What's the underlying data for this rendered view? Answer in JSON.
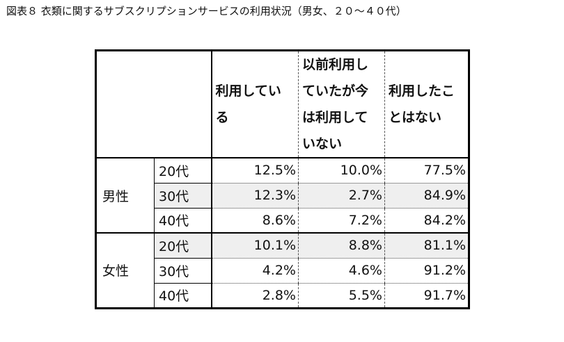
{
  "caption": "図表８ 衣類に関するサブスクリプションサービスの利用状況（男女、２０～４０代）",
  "table": {
    "columns": [
      [
        "利用してい",
        "る"
      ],
      [
        "以前利用し",
        "ていたが今",
        "は利用して",
        "いない"
      ],
      [
        "利用したこ",
        "とはない"
      ]
    ],
    "groups": [
      {
        "label": "男性",
        "rows": [
          {
            "age": "20代",
            "values": [
              "12.5%",
              "10.0%",
              "77.5%"
            ]
          },
          {
            "age": "30代",
            "values": [
              "12.3%",
              "2.7%",
              "84.9%"
            ]
          },
          {
            "age": "40代",
            "values": [
              "8.6%",
              "7.2%",
              "84.2%"
            ]
          }
        ]
      },
      {
        "label": "女性",
        "rows": [
          {
            "age": "20代",
            "values": [
              "10.1%",
              "8.8%",
              "81.1%"
            ]
          },
          {
            "age": "30代",
            "values": [
              "4.2%",
              "4.6%",
              "91.2%"
            ]
          },
          {
            "age": "40代",
            "values": [
              "2.8%",
              "5.5%",
              "91.7%"
            ]
          }
        ]
      }
    ]
  }
}
